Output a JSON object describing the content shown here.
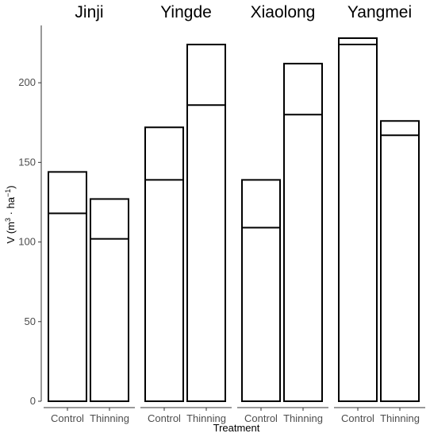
{
  "chart_data": {
    "type": "bar",
    "stacked": true,
    "facets": [
      "Jinji",
      "Yingde",
      "Xiaolong",
      "Yangmei"
    ],
    "categories": [
      "Control",
      "Thinning"
    ],
    "panels": [
      {
        "facet": "Jinji",
        "bars": [
          {
            "category": "Control",
            "lower": 118,
            "total": 144
          },
          {
            "category": "Thinning",
            "lower": 102,
            "total": 127
          }
        ]
      },
      {
        "facet": "Yingde",
        "bars": [
          {
            "category": "Control",
            "lower": 139,
            "total": 172
          },
          {
            "category": "Thinning",
            "lower": 186,
            "total": 224
          }
        ]
      },
      {
        "facet": "Xiaolong",
        "bars": [
          {
            "category": "Control",
            "lower": 109,
            "total": 139
          },
          {
            "category": "Thinning",
            "lower": 180,
            "total": 212
          }
        ]
      },
      {
        "facet": "Yangmei",
        "bars": [
          {
            "category": "Control",
            "lower": 224,
            "total": 228
          },
          {
            "category": "Thinning",
            "lower": 167,
            "total": 176
          }
        ]
      }
    ],
    "xlabel": "Treatment",
    "ylabel": "V (m³ · ha⁻¹)",
    "ylim": [
      0,
      236
    ],
    "yticks": [
      0,
      50,
      100,
      150,
      200
    ],
    "grid": false,
    "legend": "none"
  }
}
